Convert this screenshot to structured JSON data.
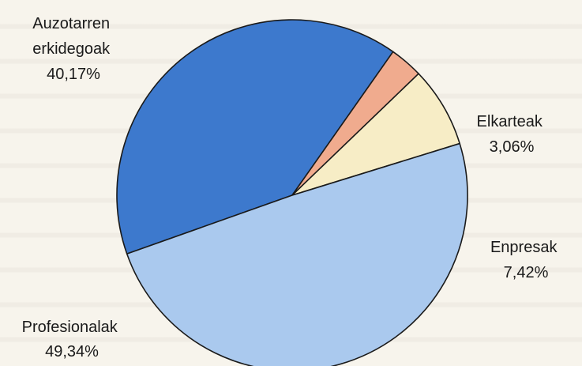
{
  "chart_data": {
    "type": "pie",
    "start_angle_deg": 199.5,
    "direction": "clockwise",
    "slices": [
      {
        "label_lines": [
          "Auzotarren",
          "erkidegoak"
        ],
        "value": 40.17,
        "value_text": "40,17%",
        "color": "#3d79cd"
      },
      {
        "label_lines": [
          "Elkarteak"
        ],
        "value": 3.06,
        "value_text": "3,06%",
        "color": "#f0ab8e"
      },
      {
        "label_lines": [
          "Enpresak"
        ],
        "value": 7.42,
        "value_text": "7,42%",
        "color": "#f7edc6"
      },
      {
        "label_lines": [
          "Profesionalak"
        ],
        "value": 49.34,
        "value_text": "49,34%",
        "color": "#aac9ee"
      }
    ]
  }
}
